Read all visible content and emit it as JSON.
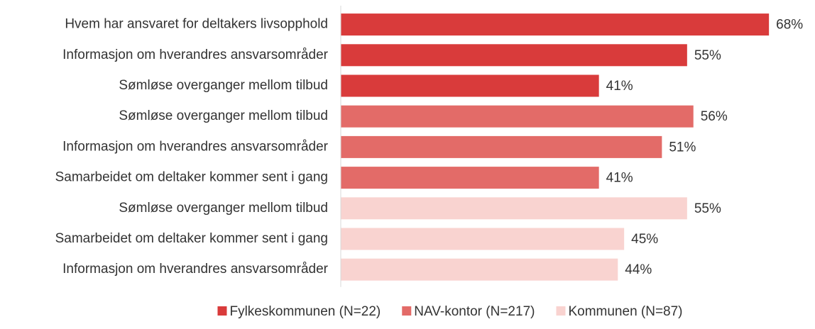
{
  "chart_data": {
    "type": "barh",
    "categories": [
      "Hvem har ansvaret for deltakers livsopphold",
      "Informasjon om hverandres ansvarsområder",
      "Sømløse overganger mellom tilbud",
      "Sømløse overganger mellom tilbud",
      "Informasjon om hverandres ansvarsområder",
      "Samarbeidet om deltaker kommer sent i gang",
      "Sømløse overganger mellom tilbud",
      "Samarbeidet om deltaker kommer sent i gang",
      "Informasjon om hverandres ansvarsområder"
    ],
    "series": [
      {
        "name": "Fylkeskommunen (N=22)",
        "color": "#d93b3b",
        "values": [
          68,
          55,
          41,
          null,
          null,
          null,
          null,
          null,
          null
        ],
        "value_labels": [
          "68%",
          "55%",
          "41%",
          null,
          null,
          null,
          null,
          null,
          null
        ]
      },
      {
        "name": "NAV-kontor (N=217)",
        "color": "#e36b68",
        "values": [
          null,
          null,
          null,
          56,
          51,
          41,
          null,
          null,
          null
        ],
        "value_labels": [
          null,
          null,
          null,
          "56%",
          "51%",
          "41%",
          null,
          null,
          null
        ]
      },
      {
        "name": "Kommunen (N=87)",
        "color": "#f9d3d0",
        "values": [
          null,
          null,
          null,
          null,
          null,
          null,
          55,
          45,
          44
        ],
        "value_labels": [
          null,
          null,
          null,
          null,
          null,
          null,
          "55%",
          "45%",
          "44%"
        ]
      }
    ],
    "xlim": [
      0,
      100
    ],
    "legend": "bottom"
  }
}
